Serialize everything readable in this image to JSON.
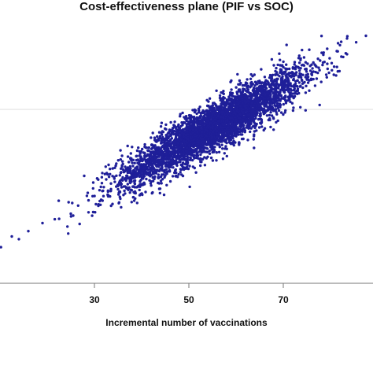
{
  "chart_data": {
    "type": "scatter",
    "title": "Cost-effectiveness plane (PIF vs SOC)",
    "xlabel": "Incremental number of vaccinations",
    "ylabel": "",
    "xlim": [
      10,
      89
    ],
    "ylim": [
      -1.0,
      1.0
    ],
    "x_ticks": [
      30,
      50,
      70
    ],
    "grid": false,
    "point_color": "#1f1f99",
    "reference_line_y": 0.3,
    "n_points": 4200,
    "distribution": {
      "x_mean": 55,
      "x_sd": 9.5,
      "slope": 0.0197,
      "intercept": -0.92,
      "residual_sd": 0.09
    },
    "outliers": [
      {
        "x": 10.2,
        "y": -0.73
      },
      {
        "x": 12.5,
        "y": -0.65
      },
      {
        "x": 14.0,
        "y": -0.67
      },
      {
        "x": 16.0,
        "y": -0.61
      },
      {
        "x": 19.0,
        "y": -0.55
      },
      {
        "x": 25.0,
        "y": -0.48
      },
      {
        "x": 82.0,
        "y": 0.78
      },
      {
        "x": 87.5,
        "y": 0.85
      }
    ]
  }
}
